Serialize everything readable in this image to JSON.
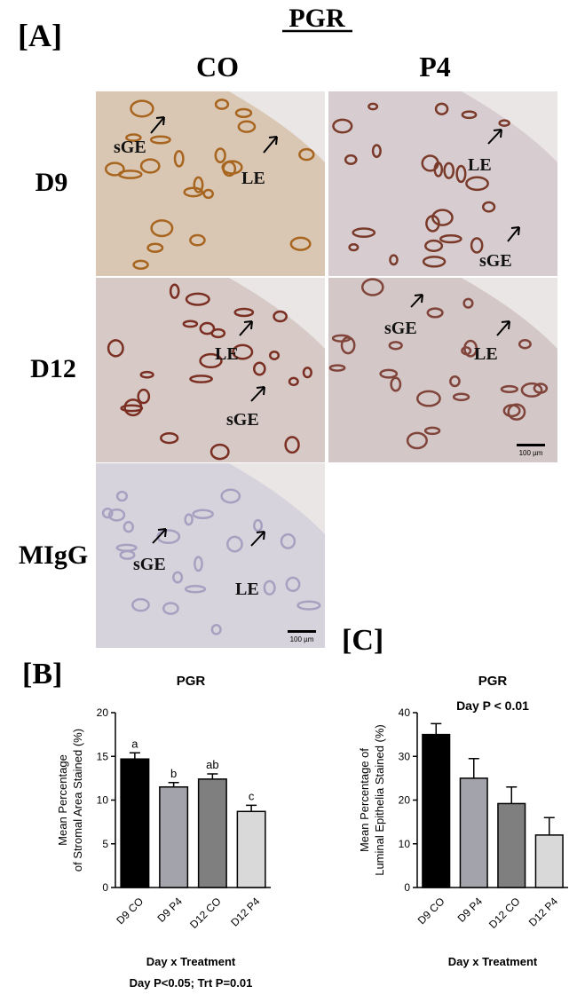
{
  "figure": {
    "panel": "[A]",
    "title": "PGR",
    "columns": [
      "CO",
      "P4"
    ],
    "rows": [
      "D9",
      "D12",
      "MIgG"
    ],
    "image_labels": [
      "sGE",
      "LE",
      "LE",
      "sGE",
      "LE",
      "sGE",
      "sGE",
      "LE",
      "sGE",
      "LE"
    ],
    "scale_bars": [
      "100 µm",
      "100 µm"
    ]
  },
  "chart_data": [
    {
      "type": "bar",
      "panel": "[B]",
      "title": "PGR",
      "ylabel": [
        "Mean Percentage",
        "of Stromal Area Stained (%)"
      ],
      "xlabel": "Day x Treatment",
      "footnote": "Day P<0.05; Trt P=0.01",
      "categories": [
        "D9 CO",
        "D9 P4",
        "D12 CO",
        "D12 P4"
      ],
      "values": [
        14.7,
        11.5,
        12.4,
        8.7
      ],
      "errors": [
        0.7,
        0.5,
        0.6,
        0.7
      ],
      "annotations": [
        "a",
        "b",
        "ab",
        "c"
      ],
      "colors": [
        "#000000",
        "#a3a3ab",
        "#7f7f7f",
        "#d9d9d9"
      ],
      "ylim": [
        0,
        20
      ],
      "yticks": [
        0,
        5,
        10,
        15,
        20
      ]
    },
    {
      "type": "bar",
      "panel": "[C]",
      "title": "PGR",
      "subtitle": "Day P < 0.01",
      "ylabel": [
        "Mean Percentage of",
        "Luminal Epithelia Stained (%)"
      ],
      "xlabel": "Day x Treatment",
      "categories": [
        "D9 CO",
        "D9 P4",
        "D12 CO",
        "D12 P4"
      ],
      "values": [
        35,
        25,
        19.2,
        12
      ],
      "errors": [
        2.5,
        4.5,
        3.8,
        4
      ],
      "colors": [
        "#000000",
        "#a3a3ab",
        "#7f7f7f",
        "#d9d9d9"
      ],
      "ylim": [
        0,
        40
      ],
      "yticks": [
        0,
        10,
        20,
        30,
        40
      ]
    }
  ]
}
